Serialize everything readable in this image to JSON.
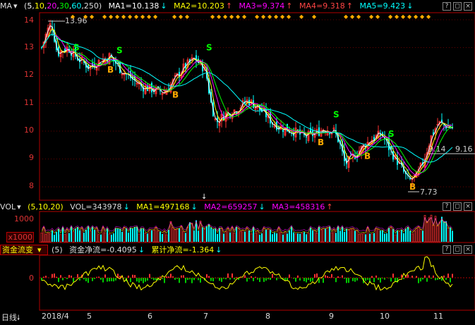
{
  "price_header": {
    "name": "MA",
    "params_prefix": "(",
    "params": [
      "5",
      "10",
      "20",
      "30",
      "60",
      "250"
    ],
    "params_suffix": ")",
    "ma1": "MA1=10.138",
    "ma2": "MA2=10.203",
    "ma3": "MA3=9.374",
    "ma4": "MA4=9.318",
    "ma5": "MA5=9.423"
  },
  "vol_header": {
    "name": "VOL",
    "params": "(5,10,20)",
    "vol": "VOL=343978",
    "ma1": "MA1=497168",
    "ma2": "MA2=659257",
    "ma3": "MA3=458316"
  },
  "flow_header": {
    "name": "资金流变",
    "params": "(5)",
    "net": "资金净流=-0.4095",
    "cum": "累计净流=-1.364"
  },
  "price_axis": [
    "14",
    "13",
    "12",
    "11",
    "10",
    "9",
    "8"
  ],
  "vol_axis": [
    "1000",
    "x1000"
  ],
  "flow_axis": [
    "0"
  ],
  "period": "日线",
  "x_axis": [
    "2018/4",
    "5",
    "6",
    "7",
    "8",
    "9",
    "10",
    "11"
  ],
  "annotations": {
    "high": "13.96",
    "low": "7.73",
    "last": "9.16",
    "last_small": "9.14"
  },
  "signals": {
    "buy": "B",
    "sell": "S"
  },
  "colors": {
    "up": "#ff3232",
    "down": "#00ffff",
    "ma1": "#ffffff",
    "ma2": "#ffff00",
    "ma3": "#ff00ff",
    "ma4": "#00ff00",
    "ma5": "#00ffff",
    "accent_red": "#b00000"
  }
}
